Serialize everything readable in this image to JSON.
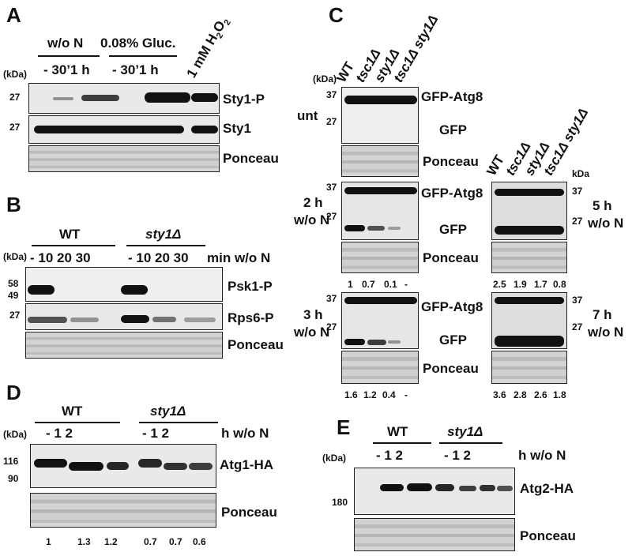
{
  "kda": "(kDa)",
  "kda_short": "kDa",
  "ponceau": "Ponceau",
  "A": {
    "letter": "A",
    "groups": [
      "w/o N",
      "0.08% Gluc."
    ],
    "times_left": "-   30’1 h",
    "times_right": "-   30’1 h",
    "h2o2_prefix": "1 mM H",
    "h2o2_sub1": "2",
    "h2o2_mid": "O",
    "h2o2_sub2": "2",
    "rows": [
      "Sty1-P",
      "Sty1"
    ],
    "mw": [
      "27",
      "27"
    ]
  },
  "B": {
    "letter": "B",
    "groups": [
      "WT",
      "sty1Δ"
    ],
    "times_left": "-  10 20 30",
    "times_right": "-  10 20 30",
    "unit": "min w/o N",
    "rows": [
      "Psk1-P",
      "Rps6-P"
    ],
    "mw": [
      "58",
      "49",
      "27"
    ]
  },
  "C": {
    "letter": "C",
    "strains": [
      "WT",
      "tsc1Δ",
      "sty1Δ",
      "tsc1Δ sty1Δ"
    ],
    "gfp_atg8": "GFP-Atg8",
    "gfp": "GFP",
    "unt": "unt",
    "cond_2h": [
      "2 h",
      "w/o N"
    ],
    "cond_3h": [
      "3 h",
      "w/o N"
    ],
    "cond_5h": [
      "5 h",
      "w/o N"
    ],
    "cond_7h": [
      "7 h",
      "w/o N"
    ],
    "mw": [
      "37",
      "27"
    ],
    "quant_2h": [
      "1",
      "0.7",
      "0.1",
      "-"
    ],
    "quant_3h": [
      "1.6",
      "1.2",
      "0.4",
      "-"
    ],
    "quant_5h": [
      "2.5",
      "1.9",
      "1.7",
      "0.8"
    ],
    "quant_7h": [
      "3.6",
      "2.8",
      "2.6",
      "1.8"
    ]
  },
  "D": {
    "letter": "D",
    "groups": [
      "WT",
      "sty1Δ"
    ],
    "times_left": "-     1     2",
    "times_right": "-     1     2",
    "unit": "h w/o N",
    "row": "Atg1-HA",
    "mw": [
      "116",
      "90"
    ],
    "quant": [
      "1",
      "1.3",
      "1.2",
      "0.7",
      "0.7",
      "0.6"
    ]
  },
  "E": {
    "letter": "E",
    "groups": [
      "WT",
      "sty1Δ"
    ],
    "times_left": "-     1     2",
    "times_right": "-     1     2",
    "unit": "h w/o N",
    "row": "Atg2-HA",
    "mw": [
      "180"
    ]
  }
}
